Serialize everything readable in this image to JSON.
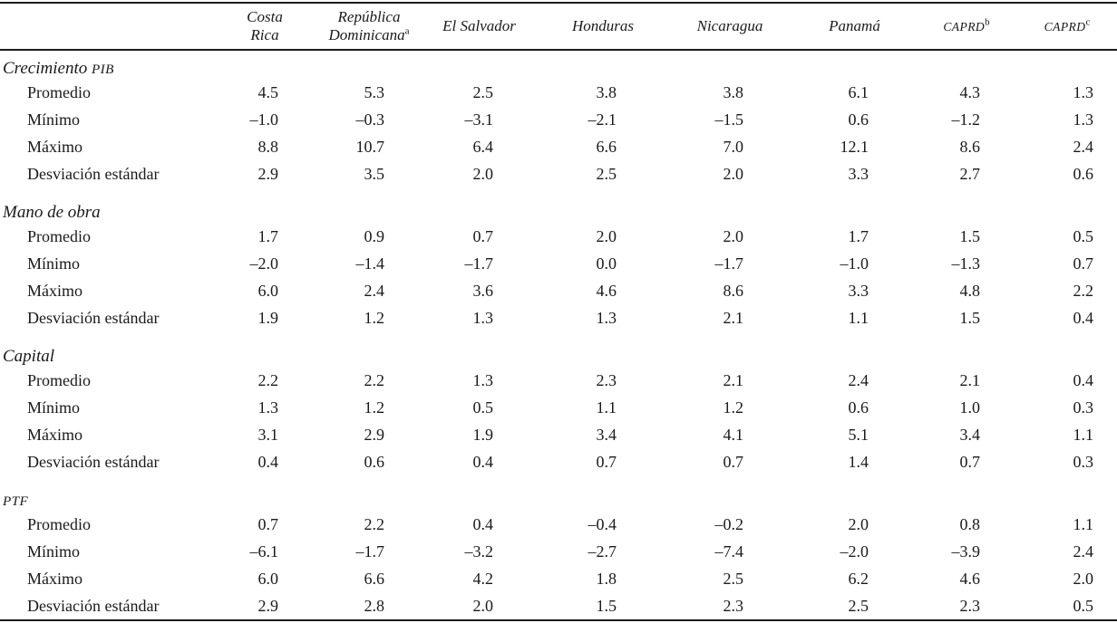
{
  "colors": {
    "text": "#1a1a1a",
    "rule": "#1a1a1a",
    "background": "#ffffff"
  },
  "table": {
    "columns": [
      {
        "lines": [
          "Costa",
          "Rica"
        ],
        "sup": "",
        "small_caps": false
      },
      {
        "lines": [
          "República",
          "Dominicana"
        ],
        "sup": "a",
        "small_caps": false
      },
      {
        "lines": [
          "El Salvador"
        ],
        "sup": "",
        "small_caps": false
      },
      {
        "lines": [
          "Honduras"
        ],
        "sup": "",
        "small_caps": false
      },
      {
        "lines": [
          "Nicaragua"
        ],
        "sup": "",
        "small_caps": false
      },
      {
        "lines": [
          "Panamá"
        ],
        "sup": "",
        "small_caps": false
      },
      {
        "lines": [
          "CAPRD"
        ],
        "sup": "b",
        "small_caps": true
      },
      {
        "lines": [
          "CAPRD"
        ],
        "sup": "c",
        "small_caps": true
      }
    ],
    "sections": [
      {
        "title_text": "Crecimiento",
        "title_caps": "PIB",
        "rows": [
          {
            "label": "Promedio",
            "values": [
              "4.5",
              "5.3",
              "2.5",
              "3.8",
              "3.8",
              "6.1",
              "4.3",
              "1.3"
            ]
          },
          {
            "label": "Mínimo",
            "values": [
              "–1.0",
              "–0.3",
              "–3.1",
              "–2.1",
              "–1.5",
              "0.6",
              "–1.2",
              "1.3"
            ]
          },
          {
            "label": "Máximo",
            "values": [
              "8.8",
              "10.7",
              "6.4",
              "6.6",
              "7.0",
              "12.1",
              "8.6",
              "2.4"
            ]
          },
          {
            "label": "Desviación estándar",
            "values": [
              "2.9",
              "3.5",
              "2.0",
              "2.5",
              "2.0",
              "3.3",
              "2.7",
              "0.6"
            ]
          }
        ]
      },
      {
        "title_text": "Mano de obra",
        "title_caps": "",
        "rows": [
          {
            "label": "Promedio",
            "values": [
              "1.7",
              "0.9",
              "0.7",
              "2.0",
              "2.0",
              "1.7",
              "1.5",
              "0.5"
            ]
          },
          {
            "label": "Mínimo",
            "values": [
              "–2.0",
              "–1.4",
              "–1.7",
              "0.0",
              "–1.7",
              "–1.0",
              "–1.3",
              "0.7"
            ]
          },
          {
            "label": "Máximo",
            "values": [
              "6.0",
              "2.4",
              "3.6",
              "4.6",
              "8.6",
              "3.3",
              "4.8",
              "2.2"
            ]
          },
          {
            "label": "Desviación estándar",
            "values": [
              "1.9",
              "1.2",
              "1.3",
              "1.3",
              "2.1",
              "1.1",
              "1.5",
              "0.4"
            ]
          }
        ]
      },
      {
        "title_text": "Capital",
        "title_caps": "",
        "rows": [
          {
            "label": "Promedio",
            "values": [
              "2.2",
              "2.2",
              "1.3",
              "2.3",
              "2.1",
              "2.4",
              "2.1",
              "0.4"
            ]
          },
          {
            "label": "Mínimo",
            "values": [
              "1.3",
              "1.2",
              "0.5",
              "1.1",
              "1.2",
              "0.6",
              "1.0",
              "0.3"
            ]
          },
          {
            "label": "Máximo",
            "values": [
              "3.1",
              "2.9",
              "1.9",
              "3.4",
              "4.1",
              "5.1",
              "3.4",
              "1.1"
            ]
          },
          {
            "label": "Desviación estándar",
            "values": [
              "0.4",
              "0.6",
              "0.4",
              "0.7",
              "0.7",
              "1.4",
              "0.7",
              "0.3"
            ]
          }
        ]
      },
      {
        "title_text": "",
        "title_caps": "PTF",
        "rows": [
          {
            "label": "Promedio",
            "values": [
              "0.7",
              "2.2",
              "0.4",
              "–0.4",
              "–0.2",
              "2.0",
              "0.8",
              "1.1"
            ]
          },
          {
            "label": "Mínimo",
            "values": [
              "–6.1",
              "–1.7",
              "–3.2",
              "–2.7",
              "–7.4",
              "–2.0",
              "–3.9",
              "2.4"
            ]
          },
          {
            "label": "Máximo",
            "values": [
              "6.0",
              "6.6",
              "4.2",
              "1.8",
              "2.5",
              "6.2",
              "4.6",
              "2.0"
            ]
          },
          {
            "label": "Desviación estándar",
            "values": [
              "2.9",
              "2.8",
              "2.0",
              "1.5",
              "2.3",
              "2.5",
              "2.3",
              "0.5"
            ]
          }
        ]
      }
    ]
  }
}
